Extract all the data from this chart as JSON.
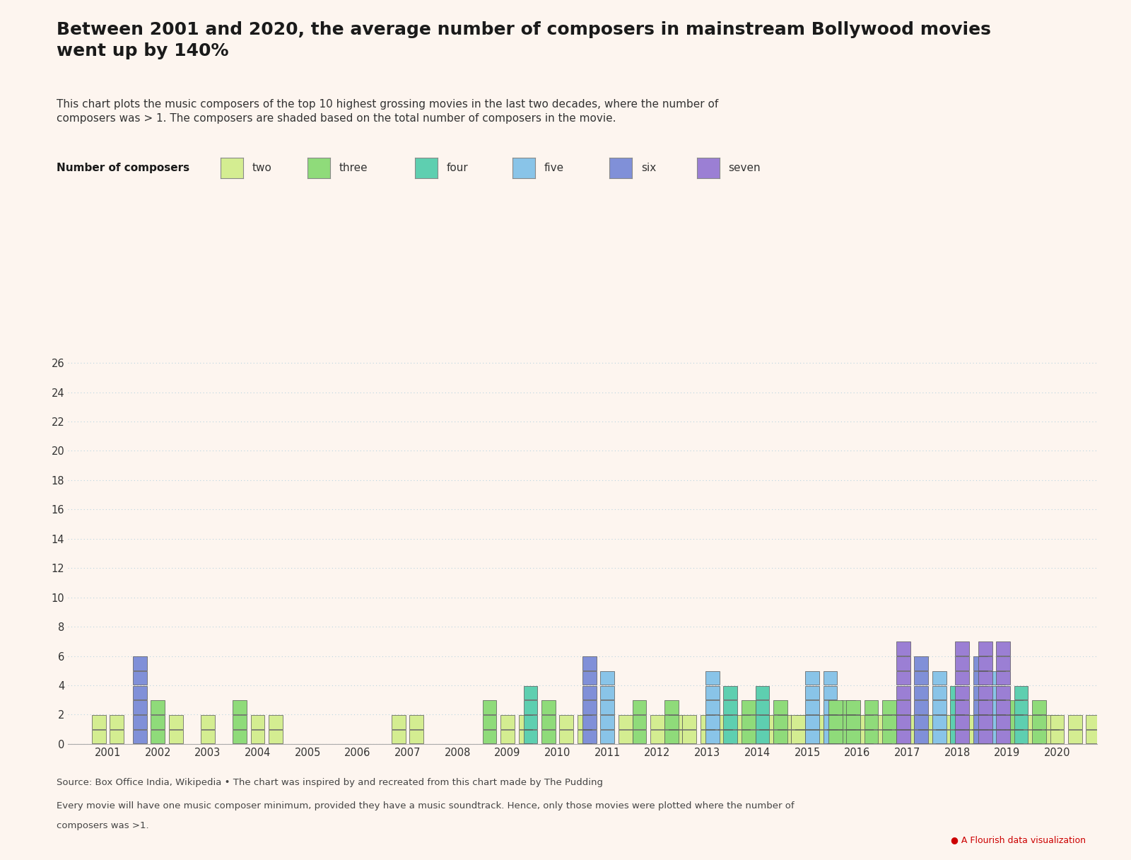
{
  "title": "Between 2001 and 2020, the average number of composers in mainstream Bollywood movies\nwent up by 140%",
  "subtitle": "This chart plots the music composers of the top 10 highest grossing movies in the last two decades, where the number of\ncomposers was > 1. The composers are shaded based on the total number of composers in the movie.",
  "legend_label": "Number of composers",
  "legend_items": [
    "two",
    "three",
    "four",
    "five",
    "six",
    "seven"
  ],
  "legend_colors": [
    "#d4ed91",
    "#8fdb7a",
    "#5ecfb0",
    "#89c4e8",
    "#8090d8",
    "#9b7fd4"
  ],
  "footnote1": "Source: Box Office India, Wikipedia • The chart was inspired by and recreated from this chart made by The Pudding",
  "footnote2": "Every movie will have one music composer minimum, provided they have a music soundtrack. Hence, only those movies were plotted where the number of",
  "footnote3": "composers was >1.",
  "flourish_text": "● A Flourish data visualization",
  "bg_color": "#fdf5ef",
  "grid_color": "#b8d4e0",
  "bar_edge_color": "#555555",
  "years": [
    2001,
    2002,
    2003,
    2004,
    2005,
    2006,
    2007,
    2008,
    2009,
    2010,
    2011,
    2012,
    2013,
    2014,
    2015,
    2016,
    2017,
    2018,
    2019,
    2020
  ],
  "movies_per_year": {
    "2001": [
      2,
      2
    ],
    "2002": [
      6,
      3,
      2
    ],
    "2003": [
      2
    ],
    "2004": [
      3,
      2,
      2
    ],
    "2005": [],
    "2006": [],
    "2007": [
      2,
      2
    ],
    "2008": [],
    "2009": [
      3,
      2,
      2
    ],
    "2010": [
      4,
      3,
      2,
      2
    ],
    "2011": [
      6,
      5,
      2
    ],
    "2012": [
      3,
      2,
      2
    ],
    "2013": [
      3,
      2,
      2,
      2,
      2
    ],
    "2014": [
      5,
      4,
      3,
      2,
      2,
      2
    ],
    "2015": [
      4,
      3,
      2,
      2,
      2,
      2
    ],
    "2016": [
      5,
      5,
      3,
      2,
      2,
      2
    ],
    "2017": [
      3,
      3,
      3,
      3,
      2,
      2,
      2,
      2,
      2
    ],
    "2018": [
      7,
      6,
      5,
      4,
      2,
      2,
      2
    ],
    "2019": [
      7,
      6,
      5,
      3,
      2,
      2
    ],
    "2020": [
      7,
      7,
      4,
      3,
      2,
      2,
      2,
      2,
      2
    ]
  },
  "composer_colors": {
    "2": "#d4ed91",
    "3": "#8fdb7a",
    "4": "#5ecfb0",
    "5": "#89c4e8",
    "6": "#8090d8",
    "7": "#9b7fd4"
  },
  "ylim": [
    0,
    27
  ],
  "yticks": [
    0,
    2,
    4,
    6,
    8,
    10,
    12,
    14,
    16,
    18,
    20,
    22,
    24,
    26
  ]
}
